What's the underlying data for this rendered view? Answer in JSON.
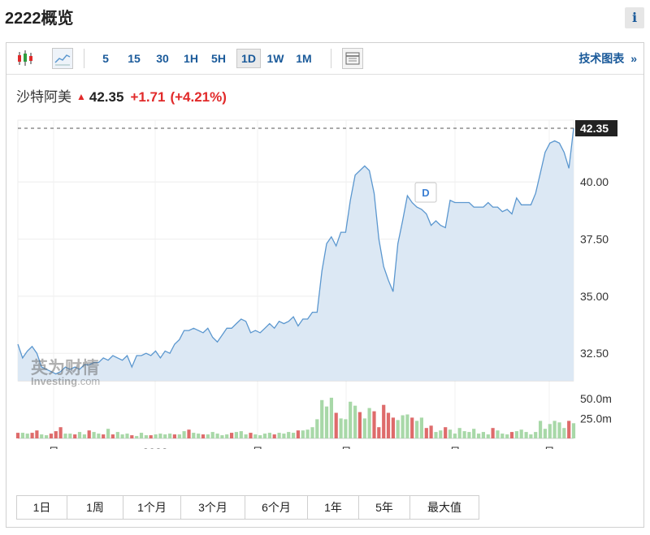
{
  "page": {
    "title": "2222概览",
    "info_label": "i"
  },
  "toolbar": {
    "chart_type_icons": [
      "candlestick-icon",
      "line-chart-icon"
    ],
    "intervals": [
      "5",
      "15",
      "30",
      "1H",
      "5H",
      "1D",
      "1W",
      "1M"
    ],
    "active_interval": "1D",
    "table_icon": "table-icon",
    "tech_chart_label": "技术图表",
    "tech_chart_arrow": "»"
  },
  "quote": {
    "name": "沙特阿美",
    "price": "42.35",
    "change": "+1.71",
    "change_pct": "(+4.21%)",
    "direction": "up",
    "up_color": "#e12a2a"
  },
  "watermark": {
    "cn": "英为财情",
    "en": "Investing",
    "suffix": ".com"
  },
  "event_marker": "D",
  "ranges": [
    "1日",
    "1周",
    "1个月",
    "3个月",
    "6个月",
    "1年",
    "5年",
    "最大值"
  ],
  "chart_data": {
    "type": "area",
    "price_axis": {
      "ticks": [
        32.5,
        35,
        37.5,
        40
      ],
      "tick_labels": [
        "32.50",
        "35.00",
        "37.50",
        "40.00"
      ],
      "range": [
        31.3,
        42.35
      ],
      "last_label": "42.35",
      "last_value": 42.35
    },
    "volume_axis": {
      "ticks": [
        25,
        50
      ],
      "tick_labels": [
        "25.0m",
        "50.0m"
      ],
      "unit": "m"
    },
    "x_labels": [
      "月",
      "2022",
      "月",
      "月",
      "月",
      "月"
    ],
    "area_color": "#dce8f4",
    "line_color": "#5b97cf",
    "up_volume_color": "#a8d8a8",
    "down_volume_color": "#de6b6b",
    "close": [
      32.9,
      32.3,
      32.6,
      32.8,
      32.5,
      31.9,
      31.8,
      31.7,
      31.6,
      31.7,
      31.9,
      31.8,
      31.9,
      31.8,
      32.0,
      32.0,
      32.1,
      32.1,
      32.3,
      32.2,
      32.4,
      32.3,
      32.2,
      32.4,
      31.9,
      32.4,
      32.4,
      32.5,
      32.4,
      32.6,
      32.3,
      32.6,
      32.5,
      32.9,
      33.1,
      33.5,
      33.5,
      33.6,
      33.5,
      33.4,
      33.6,
      33.2,
      33.0,
      33.3,
      33.6,
      33.6,
      33.8,
      34.0,
      33.9,
      33.4,
      33.5,
      33.4,
      33.6,
      33.8,
      33.6,
      33.9,
      33.8,
      33.9,
      34.1,
      33.7,
      34.0,
      34.0,
      34.3,
      34.3,
      36.1,
      37.3,
      37.6,
      37.2,
      37.8,
      37.8,
      39.2,
      40.3,
      40.5,
      40.7,
      40.5,
      39.5,
      37.5,
      36.3,
      35.7,
      35.2,
      37.3,
      38.3,
      39.4,
      39.1,
      38.9,
      38.8,
      38.6,
      38.1,
      38.3,
      38.1,
      38.0,
      39.2,
      39.1,
      39.1,
      39.1,
      39.1,
      38.9,
      38.9,
      38.9,
      39.1,
      38.9,
      38.9,
      38.7,
      38.8,
      38.6,
      39.3,
      39.0,
      39.0,
      39.0,
      39.5,
      40.4,
      41.3,
      41.7,
      41.8,
      41.7,
      41.3,
      40.6,
      42.35
    ],
    "volume": [
      7,
      7,
      6,
      7,
      10,
      5,
      4,
      6,
      9,
      14,
      6,
      6,
      5,
      8,
      5,
      10,
      8,
      6,
      5,
      12,
      5,
      8,
      5,
      6,
      4,
      3,
      7,
      4,
      4,
      5,
      6,
      5,
      6,
      5,
      5,
      9,
      11,
      7,
      6,
      5,
      5,
      8,
      6,
      4,
      5,
      7,
      8,
      9,
      5,
      7,
      5,
      4,
      6,
      7,
      5,
      7,
      6,
      8,
      7,
      10,
      10,
      11,
      14,
      24,
      48,
      40,
      51,
      32,
      25,
      24,
      46,
      41,
      33,
      25,
      38,
      34,
      14,
      42,
      32,
      26,
      23,
      29,
      30,
      26,
      22,
      26,
      13,
      16,
      8,
      10,
      14,
      11,
      6,
      13,
      9,
      8,
      12,
      6,
      8,
      5,
      13,
      10,
      6,
      5,
      8,
      9,
      11,
      8,
      5,
      8,
      22,
      12,
      18,
      22,
      20,
      13,
      22,
      19
    ],
    "volume_direction": [
      "d",
      "u",
      "u",
      "d",
      "d",
      "u",
      "u",
      "d",
      "d",
      "d",
      "u",
      "u",
      "d",
      "u",
      "u",
      "d",
      "u",
      "u",
      "d",
      "u",
      "d",
      "u",
      "u",
      "u",
      "d",
      "u",
      "u",
      "u",
      "d",
      "u",
      "u",
      "u",
      "u",
      "d",
      "u",
      "u",
      "d",
      "u",
      "u",
      "d",
      "u",
      "u",
      "u",
      "u",
      "u",
      "d",
      "u",
      "u",
      "u",
      "d",
      "u",
      "u",
      "u",
      "u",
      "d",
      "u",
      "u",
      "u",
      "u",
      "d",
      "u",
      "u",
      "u",
      "u",
      "u",
      "u",
      "u",
      "d",
      "u",
      "u",
      "u",
      "u",
      "d",
      "u",
      "u",
      "d",
      "d",
      "d",
      "d",
      "d",
      "u",
      "u",
      "u",
      "d",
      "u",
      "u",
      "d",
      "d",
      "u",
      "u",
      "d",
      "u",
      "u",
      "u",
      "u",
      "u",
      "u",
      "u",
      "u",
      "u",
      "d",
      "u",
      "u",
      "u",
      "d",
      "u",
      "u",
      "u",
      "u",
      "u",
      "u",
      "u",
      "u",
      "u",
      "u",
      "u",
      "d",
      "u"
    ]
  }
}
